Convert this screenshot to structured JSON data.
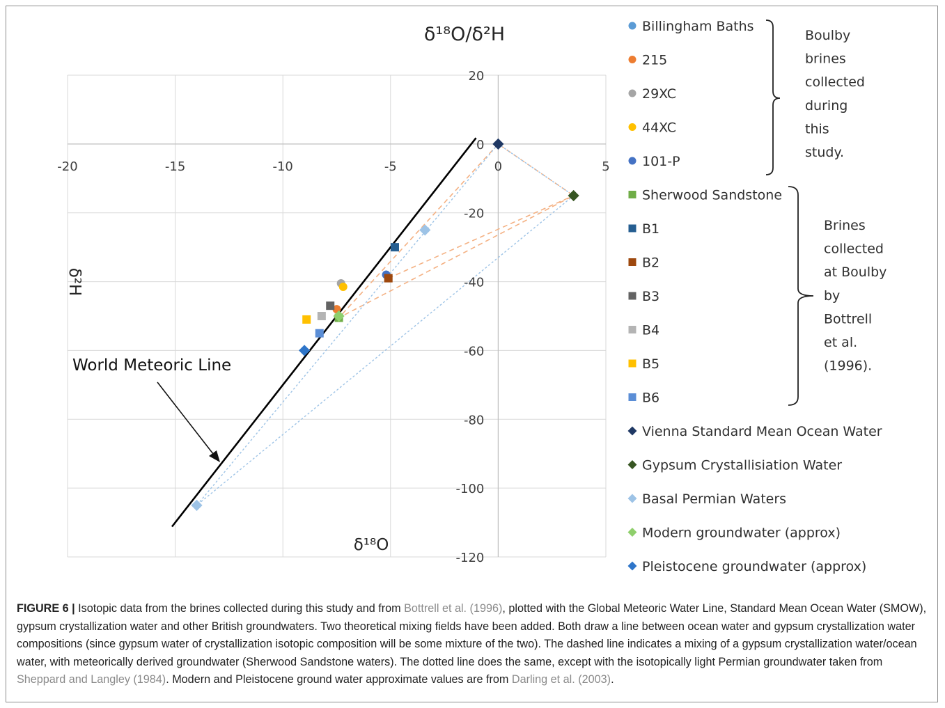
{
  "chart_data": {
    "type": "scatter",
    "title": "δ¹⁸O/δ²H",
    "xlabel": "δ¹⁸O",
    "ylabel": "δ²H",
    "xlim": [
      -20,
      5
    ],
    "ylim": [
      -120,
      20
    ],
    "xticks": [
      -20,
      -15,
      -10,
      -5,
      0,
      5
    ],
    "yticks": [
      20,
      0,
      -20,
      -40,
      -60,
      -80,
      -100,
      -120
    ],
    "grid": true,
    "legend_position": "right",
    "series": [
      {
        "name": "Billingham Baths",
        "marker": "circle",
        "color": "#5b9bd5",
        "points": [
          [
            -5.2,
            -38
          ]
        ]
      },
      {
        "name": "215",
        "marker": "circle",
        "color": "#ed7d31",
        "points": [
          [
            -7.5,
            -48
          ]
        ]
      },
      {
        "name": "29XC",
        "marker": "circle",
        "color": "#a5a5a5",
        "points": [
          [
            -7.3,
            -40.5
          ]
        ]
      },
      {
        "name": "44XC",
        "marker": "circle",
        "color": "#ffc000",
        "points": [
          [
            -7.2,
            -41.5
          ]
        ]
      },
      {
        "name": "101-P",
        "marker": "circle",
        "color": "#4472c4",
        "points": [
          [
            -5.2,
            -38
          ]
        ]
      },
      {
        "name": "Sherwood Sandstone",
        "marker": "square",
        "color": "#70ad47",
        "points": [
          [
            -7.4,
            -50.5
          ]
        ]
      },
      {
        "name": "B1",
        "marker": "square",
        "color": "#255e91",
        "points": [
          [
            -4.8,
            -30
          ]
        ]
      },
      {
        "name": "B2",
        "marker": "square",
        "color": "#9e480e",
        "points": [
          [
            -5.1,
            -39
          ]
        ]
      },
      {
        "name": "B3",
        "marker": "square",
        "color": "#636363",
        "points": [
          [
            -7.8,
            -47
          ]
        ]
      },
      {
        "name": "B4",
        "marker": "square",
        "color": "#b4b4b4",
        "points": [
          [
            -8.2,
            -50
          ]
        ]
      },
      {
        "name": "B5",
        "marker": "square",
        "color": "#ffc000",
        "points": [
          [
            -8.9,
            -51
          ]
        ]
      },
      {
        "name": "B6",
        "marker": "square",
        "color": "#5b8ed6",
        "points": [
          [
            -8.3,
            -55
          ]
        ]
      },
      {
        "name": "Vienna Standard Mean Ocean Water",
        "marker": "diamond",
        "color": "#1f3864",
        "points": [
          [
            0,
            0
          ]
        ]
      },
      {
        "name": "Gypsum Crystallisiation Water",
        "marker": "diamond",
        "color": "#375623",
        "points": [
          [
            3.5,
            -15
          ]
        ]
      },
      {
        "name": "Basal Permian Waters",
        "marker": "diamond",
        "color": "#9dc3e6",
        "points": [
          [
            -14,
            -105
          ],
          [
            -3.4,
            -25
          ]
        ]
      },
      {
        "name": "Modern groundwater (approx)",
        "marker": "diamond",
        "color": "#8fcf6c",
        "points": [
          [
            -7.4,
            -50
          ]
        ]
      },
      {
        "name": "Pleistocene groundwater (approx)",
        "marker": "diamond",
        "color": "#2e75c9",
        "points": [
          [
            -9,
            -60
          ]
        ]
      }
    ],
    "lines": [
      {
        "style": "solid",
        "color": "#000000",
        "points": [
          [
            -15.15,
            -111.2
          ],
          [
            -1.03,
            1.76
          ]
        ]
      },
      {
        "style": "dashed",
        "color": "#f4b183",
        "points": [
          [
            0,
            0
          ],
          [
            -7.4,
            -50.5
          ],
          [
            3.5,
            -15
          ],
          [
            0,
            0
          ]
        ]
      },
      {
        "style": "dashed",
        "color": "#f4b183",
        "points": [
          [
            -5.1,
            -39
          ],
          [
            3.5,
            -15
          ]
        ]
      },
      {
        "style": "dotted",
        "color": "#9dc3e6",
        "points": [
          [
            0,
            0
          ],
          [
            -14,
            -105
          ],
          [
            3.5,
            -15
          ],
          [
            0,
            0
          ]
        ]
      }
    ],
    "annotation": {
      "text": "World Meteoric Line"
    }
  },
  "legend": {
    "group1_label_lines": [
      "Boulby",
      "brines",
      "collected",
      "during",
      "this",
      "study."
    ],
    "group2_label_lines": [
      "Brines",
      "collected",
      "at Boulby",
      "by",
      "Bottrell",
      "et al.",
      "(1996)."
    ]
  },
  "caption": {
    "label": "FIGURE 6 |",
    "t1": " Isotopic data from the brines collected during this study and from ",
    "c1": "Bottrell et al. (1996)",
    "t2": ", plotted with the Global Meteoric Water Line, Standard Mean Ocean Water (SMOW), gypsum crystallization water and other British groundwaters. Two theoretical mixing fields have been added. Both draw a line between ocean water and gypsum crystallization water compositions (since gypsum water of crystallization isotopic composition will be some mixture of the two). The dashed line indicates a mixing of a gypsum crystallization water/ocean water, with meteorically derived groundwater (Sherwood Sandstone waters). The dotted line does the same, except with the isotopically light Permian groundwater taken from ",
    "c2": "Sheppard and Langley (1984)",
    "t3": ". Modern and Pleistocene ground water approximate values are from ",
    "c3": "Darling et al. (2003)",
    "t4": "."
  }
}
